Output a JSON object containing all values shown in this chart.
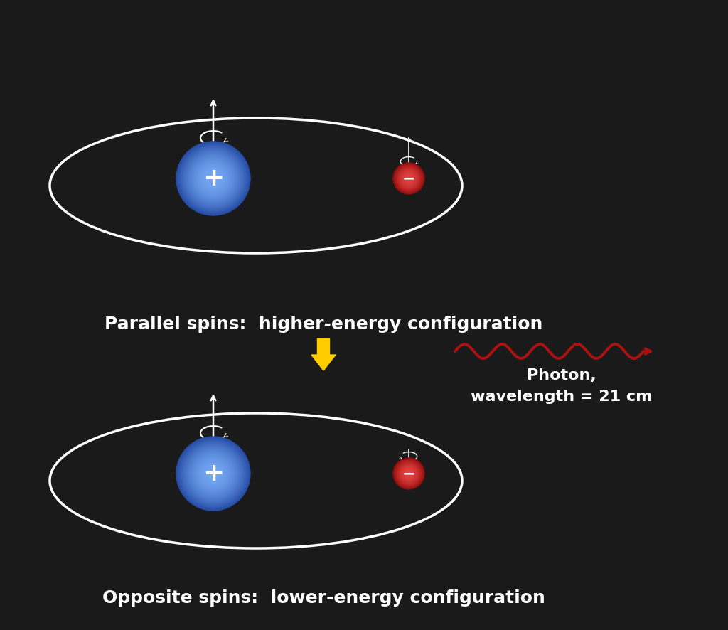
{
  "bg_color": "#1a1a1a",
  "white": "#ffffff",
  "blue_proton_dark": [
    0.15,
    0.3,
    0.65
  ],
  "blue_proton_light": [
    0.45,
    0.65,
    0.95
  ],
  "red_electron_dark": [
    0.55,
    0.05,
    0.05
  ],
  "red_electron_light": [
    0.9,
    0.25,
    0.25
  ],
  "yellow_arrow": "#ffcc00",
  "photon_color": "#aa1111",
  "title1": "Parallel spins:  higher-energy configuration",
  "title2": "Opposite spins:  lower-energy configuration",
  "photon_label1": "Photon,",
  "photon_label2": "wavelength = 21 cm",
  "text_fontsize": 18,
  "label_fontsize": 16
}
